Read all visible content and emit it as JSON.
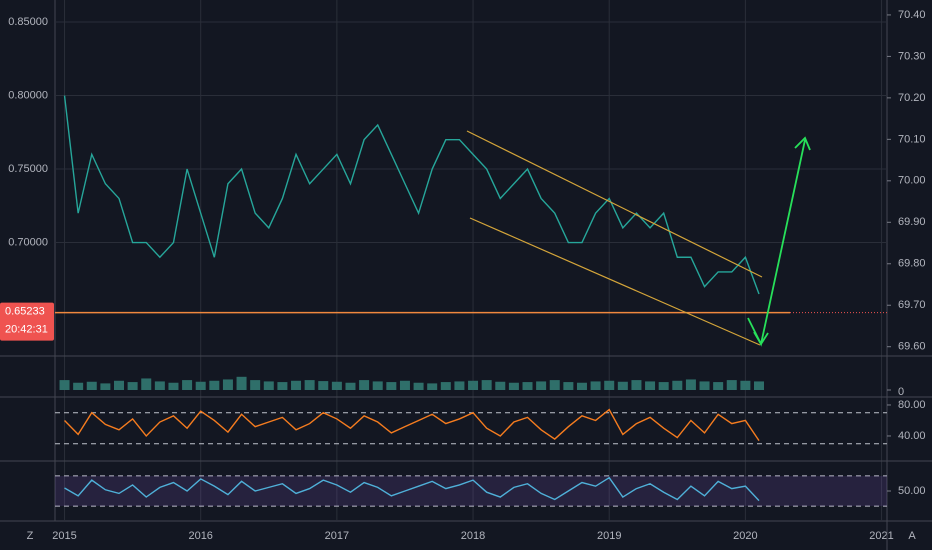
{
  "chart_data": [
    {
      "type": "line",
      "color": "#26a69a",
      "x": [
        2015.0,
        2015.1,
        2015.2,
        2015.3,
        2015.4,
        2015.5,
        2015.6,
        2015.7,
        2015.8,
        2015.9,
        2016.0,
        2016.1,
        2016.2,
        2016.3,
        2016.4,
        2016.5,
        2016.6,
        2016.7,
        2016.8,
        2016.9,
        2017.0,
        2017.1,
        2017.2,
        2017.3,
        2017.4,
        2017.5,
        2017.6,
        2017.7,
        2017.8,
        2017.9,
        2018.0,
        2018.1,
        2018.2,
        2018.3,
        2018.4,
        2018.5,
        2018.6,
        2018.7,
        2018.8,
        2018.9,
        2019.0,
        2019.1,
        2019.2,
        2019.3,
        2019.4,
        2019.5,
        2019.6,
        2019.7,
        2019.8,
        2019.9,
        2020.0,
        2020.1
      ],
      "values": [
        0.8,
        0.72,
        0.76,
        0.74,
        0.73,
        0.7,
        0.7,
        0.69,
        0.7,
        0.75,
        0.72,
        0.69,
        0.74,
        0.75,
        0.72,
        0.71,
        0.73,
        0.76,
        0.74,
        0.75,
        0.76,
        0.74,
        0.77,
        0.78,
        0.76,
        0.74,
        0.72,
        0.75,
        0.77,
        0.77,
        0.76,
        0.75,
        0.73,
        0.74,
        0.75,
        0.73,
        0.72,
        0.7,
        0.7,
        0.72,
        0.73,
        0.71,
        0.72,
        0.71,
        0.72,
        0.69,
        0.69,
        0.67,
        0.68,
        0.68,
        0.69,
        0.665
      ],
      "xlim": [
        2014.93,
        2021.04
      ],
      "xticks": [
        2015,
        2016,
        2017,
        2018,
        2019,
        2020,
        2021
      ],
      "ylim": [
        0.6235,
        0.865
      ],
      "yticks": [
        {
          "value": 0.85,
          "label": "0.85000"
        },
        {
          "value": 0.8,
          "label": "0.80000"
        },
        {
          "value": 0.75,
          "label": "0.75000"
        },
        {
          "value": 0.7,
          "label": "0.70000"
        }
      ],
      "y2lim": [
        69.58,
        70.436
      ],
      "y2ticks": [
        {
          "value": 70.4,
          "label": "70.40"
        },
        {
          "value": 70.3,
          "label": "70.30"
        },
        {
          "value": 70.2,
          "label": "70.20"
        },
        {
          "value": 70.1,
          "label": "70.10"
        },
        {
          "value": 70.0,
          "label": "70.00"
        },
        {
          "value": 69.9,
          "label": "69.90"
        },
        {
          "value": 69.8,
          "label": "69.80"
        },
        {
          "value": 69.7,
          "label": "69.70"
        },
        {
          "value": 69.6,
          "label": "69.60"
        }
      ],
      "last_price": {
        "value": 0.65233,
        "label": "0.65233"
      },
      "countdown": "20:42:31",
      "grid": true
    },
    {
      "type": "bar",
      "color": "#2f6f6a",
      "values": [
        30,
        22,
        25,
        20,
        28,
        24,
        35,
        26,
        22,
        30,
        25,
        28,
        32,
        40,
        30,
        26,
        24,
        28,
        30,
        27,
        25,
        22,
        30,
        26,
        24,
        28,
        22,
        20,
        24,
        26,
        28,
        30,
        25,
        22,
        24,
        26,
        30,
        24,
        22,
        26,
        28,
        25,
        30,
        26,
        24,
        28,
        32,
        26,
        24,
        30,
        28,
        26
      ],
      "ylim": [
        0,
        100
      ],
      "yticks": [
        0
      ]
    },
    {
      "type": "line",
      "color": "#f57c1f",
      "values": [
        60,
        42,
        70,
        55,
        48,
        62,
        40,
        58,
        66,
        50,
        72,
        60,
        45,
        68,
        52,
        58,
        64,
        48,
        56,
        70,
        62,
        50,
        66,
        58,
        44,
        52,
        60,
        68,
        56,
        62,
        70,
        50,
        40,
        58,
        64,
        48,
        36,
        52,
        66,
        60,
        74,
        42,
        56,
        64,
        50,
        38,
        60,
        44,
        68,
        56,
        60,
        34
      ],
      "ylim": [
        9,
        89
      ],
      "yticks": [
        {
          "value": 80,
          "label": "80.00"
        },
        {
          "value": 40,
          "label": "40.00"
        }
      ],
      "bands": [
        70,
        30
      ]
    },
    {
      "type": "line",
      "color": "#4fb0d8",
      "values": [
        55,
        42,
        68,
        52,
        46,
        60,
        40,
        56,
        64,
        50,
        70,
        58,
        44,
        66,
        50,
        56,
        62,
        46,
        54,
        68,
        60,
        48,
        64,
        56,
        42,
        50,
        58,
        66,
        54,
        60,
        68,
        48,
        40,
        56,
        62,
        46,
        36,
        50,
        64,
        58,
        72,
        40,
        54,
        62,
        48,
        36,
        58,
        42,
        66,
        54,
        58,
        34
      ],
      "ylim": [
        2,
        98
      ],
      "yticks": [
        {
          "value": 50,
          "label": "50.00"
        }
      ],
      "bands": [
        75,
        25
      ]
    }
  ],
  "ui": {
    "left_button": "Z",
    "right_button": "A"
  }
}
